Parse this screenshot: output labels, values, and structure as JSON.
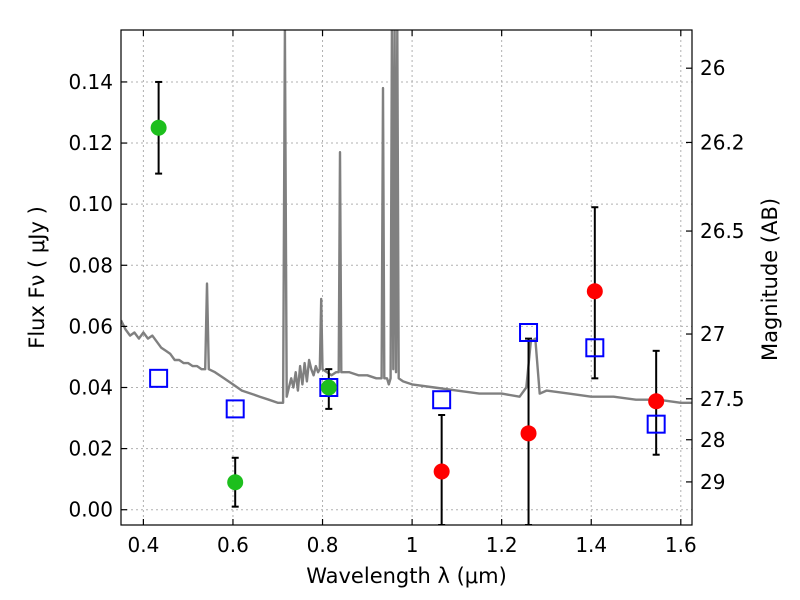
{
  "chart_data": {
    "type": "scatter",
    "title": "",
    "xlabel": "Wavelength  λ (μm)",
    "ylabel": "Flux  Fν  ( μJy )",
    "y2label": "Magnitude (AB)",
    "xlim": [
      0.35,
      1.625
    ],
    "ylim": [
      -0.005,
      0.157
    ],
    "grid": true,
    "x_ticks": [
      0.4,
      0.6,
      0.8,
      1.0,
      1.2,
      1.4,
      1.6
    ],
    "x_tick_labels": [
      "0.4",
      "0.6",
      "0.8",
      "1",
      "1.2",
      "1.4",
      "1.6"
    ],
    "y_ticks": [
      0.0,
      0.02,
      0.04,
      0.06,
      0.08,
      0.1,
      0.12,
      0.14
    ],
    "y_tick_labels": [
      "0.00",
      "0.02",
      "0.04",
      "0.06",
      "0.08",
      "0.10",
      "0.12",
      "0.14"
    ],
    "y2_ticks": [
      {
        "label": "26",
        "flux": 0.1445
      },
      {
        "label": "26.2",
        "flux": 0.1202
      },
      {
        "label": "26.5",
        "flux": 0.0912
      },
      {
        "label": "27",
        "flux": 0.0575
      },
      {
        "label": "27.5",
        "flux": 0.0363
      },
      {
        "label": "28",
        "flux": 0.0229
      },
      {
        "label": "29",
        "flux": 0.0091
      }
    ],
    "series": [
      {
        "type": "line",
        "color": "#808080",
        "points": [
          [
            0.35,
            0.062
          ],
          [
            0.36,
            0.059
          ],
          [
            0.37,
            0.057
          ],
          [
            0.38,
            0.058
          ],
          [
            0.39,
            0.056
          ],
          [
            0.4,
            0.058
          ],
          [
            0.41,
            0.056
          ],
          [
            0.42,
            0.057
          ],
          [
            0.43,
            0.055
          ],
          [
            0.44,
            0.053
          ],
          [
            0.45,
            0.052
          ],
          [
            0.46,
            0.051
          ],
          [
            0.47,
            0.049
          ],
          [
            0.48,
            0.049
          ],
          [
            0.49,
            0.048
          ],
          [
            0.5,
            0.048
          ],
          [
            0.51,
            0.047
          ],
          [
            0.52,
            0.047
          ],
          [
            0.53,
            0.046
          ],
          [
            0.538,
            0.046
          ],
          [
            0.542,
            0.074
          ],
          [
            0.546,
            0.046
          ],
          [
            0.56,
            0.045
          ],
          [
            0.58,
            0.043
          ],
          [
            0.6,
            0.041
          ],
          [
            0.62,
            0.039
          ],
          [
            0.64,
            0.038
          ],
          [
            0.66,
            0.037
          ],
          [
            0.68,
            0.036
          ],
          [
            0.7,
            0.035
          ],
          [
            0.712,
            0.035
          ],
          [
            0.716,
            0.157
          ],
          [
            0.72,
            0.037
          ],
          [
            0.725,
            0.04
          ],
          [
            0.73,
            0.043
          ],
          [
            0.735,
            0.04
          ],
          [
            0.74,
            0.045
          ],
          [
            0.745,
            0.039
          ],
          [
            0.75,
            0.047
          ],
          [
            0.755,
            0.041
          ],
          [
            0.76,
            0.048
          ],
          [
            0.765,
            0.042
          ],
          [
            0.77,
            0.049
          ],
          [
            0.775,
            0.046
          ],
          [
            0.78,
            0.044
          ],
          [
            0.785,
            0.047
          ],
          [
            0.79,
            0.045
          ],
          [
            0.794,
            0.046
          ],
          [
            0.797,
            0.069
          ],
          [
            0.8,
            0.046
          ],
          [
            0.81,
            0.045
          ],
          [
            0.82,
            0.044
          ],
          [
            0.83,
            0.045
          ],
          [
            0.836,
            0.045
          ],
          [
            0.839,
            0.117
          ],
          [
            0.842,
            0.045
          ],
          [
            0.86,
            0.045
          ],
          [
            0.88,
            0.044
          ],
          [
            0.9,
            0.044
          ],
          [
            0.92,
            0.043
          ],
          [
            0.932,
            0.043
          ],
          [
            0.935,
            0.138
          ],
          [
            0.938,
            0.043
          ],
          [
            0.944,
            0.043
          ],
          [
            0.948,
            0.041
          ],
          [
            0.952,
            0.043
          ],
          [
            0.955,
            0.157
          ],
          [
            0.958,
            0.046
          ],
          [
            0.961,
            0.157
          ],
          [
            0.964,
            0.045
          ],
          [
            0.967,
            0.157
          ],
          [
            0.97,
            0.043
          ],
          [
            0.98,
            0.042
          ],
          [
            1.0,
            0.041
          ],
          [
            1.05,
            0.04
          ],
          [
            1.1,
            0.039
          ],
          [
            1.15,
            0.038
          ],
          [
            1.2,
            0.038
          ],
          [
            1.24,
            0.037
          ],
          [
            1.255,
            0.04
          ],
          [
            1.265,
            0.055
          ],
          [
            1.275,
            0.056
          ],
          [
            1.285,
            0.038
          ],
          [
            1.3,
            0.039
          ],
          [
            1.35,
            0.038
          ],
          [
            1.4,
            0.037
          ],
          [
            1.45,
            0.037
          ],
          [
            1.5,
            0.036
          ],
          [
            1.55,
            0.036
          ],
          [
            1.6,
            0.035
          ],
          [
            1.625,
            0.035
          ]
        ]
      },
      {
        "type": "errorbar-scatter",
        "marker": "circle",
        "color": "#1dbf1d",
        "points": [
          {
            "x": 0.434,
            "y": 0.125,
            "err_low": 0.11,
            "err_high": 0.14
          },
          {
            "x": 0.605,
            "y": 0.009,
            "err_low": 0.001,
            "err_high": 0.017
          },
          {
            "x": 0.814,
            "y": 0.04,
            "err_low": 0.033,
            "err_high": 0.046
          }
        ]
      },
      {
        "type": "errorbar-scatter",
        "marker": "circle",
        "color": "#ff0000",
        "points": [
          {
            "x": 1.066,
            "y": 0.0125,
            "err_low": -0.005,
            "err_high": 0.031
          },
          {
            "x": 1.26,
            "y": 0.025,
            "err_low": -0.005,
            "err_high": 0.056
          },
          {
            "x": 1.408,
            "y": 0.0715,
            "err_low": 0.043,
            "err_high": 0.099
          },
          {
            "x": 1.545,
            "y": 0.0355,
            "err_low": 0.018,
            "err_high": 0.052
          }
        ]
      },
      {
        "type": "scatter",
        "marker": "open-square",
        "color": "#0000ff",
        "points": [
          {
            "x": 0.434,
            "y": 0.043
          },
          {
            "x": 0.605,
            "y": 0.033
          },
          {
            "x": 0.814,
            "y": 0.04
          },
          {
            "x": 1.066,
            "y": 0.036
          },
          {
            "x": 1.26,
            "y": 0.058
          },
          {
            "x": 1.408,
            "y": 0.053
          },
          {
            "x": 1.545,
            "y": 0.028
          }
        ]
      }
    ]
  }
}
